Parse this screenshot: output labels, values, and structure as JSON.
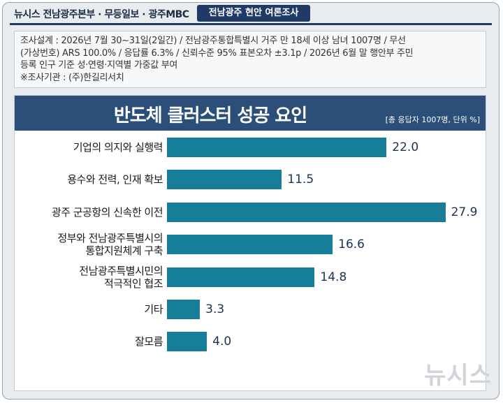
{
  "header": {
    "sources": "뉴시스 전남광주본부 · 무등일보 · 광주MBC",
    "tag": "전남광주 현안 여론조사"
  },
  "survey": {
    "lines": [
      "조사설계 : 2026년 7월 30~31일(2일간) / 전남광주통합특별시 거주 만 18세 이상 남녀 1007명 / 무선",
      "(가상번호) ARS 100.0% / 응답률 6.3% / 신뢰수준 95% 표본오차 ±3.1p / 2026년 6월 말 행안부 주민",
      "등록 인구 기준 성·연령·지역별 가중값 부여",
      "※조사기관 : (주)한길리서치"
    ]
  },
  "watermark": "뉴시스",
  "chart_data": {
    "type": "bar",
    "orientation": "horizontal",
    "title": "반도체 클러스터 성공 요인",
    "note": "[총 응답자 1007명, 단위 %]",
    "categories": [
      "기업의 의지와 실행력",
      "용수와 전력, 인재 확보",
      "광주 군공항의 신속한 이전",
      "정부와 전남광주특별시의\n통합지원체계 구축",
      "전남광주특별시민의\n적극적인 협조",
      "기타",
      "잘모름"
    ],
    "values": [
      22.0,
      11.5,
      27.9,
      16.6,
      14.8,
      3.3,
      4.0
    ],
    "value_labels": [
      "22.0",
      "11.5",
      "27.9",
      "16.6",
      "14.8",
      "3.3",
      "4.0"
    ],
    "xlim": [
      0,
      28
    ],
    "bar_color": "#177e9a",
    "grid": false,
    "legend": "none"
  }
}
